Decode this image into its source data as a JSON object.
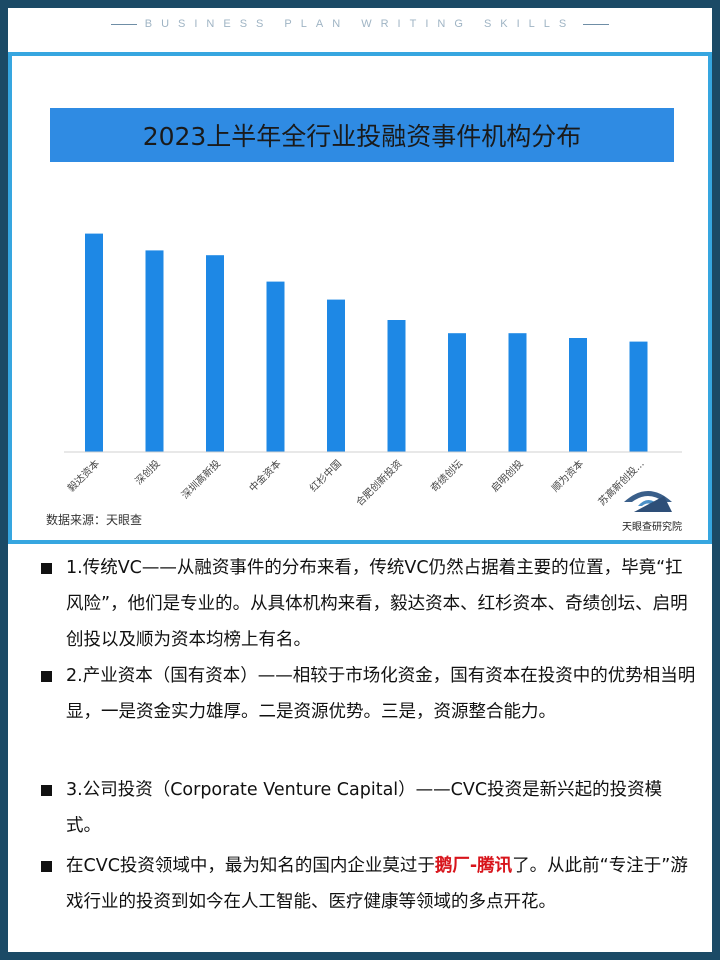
{
  "header": {
    "text": "BUSINESS PLAN WRITING SKILLS"
  },
  "chart_data": {
    "type": "bar",
    "title": "2023上半年全行业投融资事件机构分布",
    "categories": [
      "毅达资本",
      "深创投",
      "深圳高新投",
      "中金资本",
      "红杉中国",
      "合肥创新投资",
      "奇绩创坛",
      "启明创投",
      "顺为资本",
      "苏高新创投..."
    ],
    "values": [
      182,
      168,
      164,
      142,
      127,
      110,
      99,
      99,
      95,
      92
    ],
    "ylim": [
      0,
      200
    ],
    "grid": false,
    "legend": "none",
    "source": "数据来源：天眼查",
    "watermark": "天眼查研究院",
    "colors": {
      "bar": "#1e88e5",
      "title_bar": "#2f8be3",
      "title_text": "#1a1a1a"
    }
  },
  "bullets": [
    {
      "text": "1.传统VC——从融资事件的分布来看，传统VC仍然占据着主要的位置，毕竟“扛风险”，他们是专业的。从具体机构来看，毅达资本、红杉资本、奇绩创坛、启明创投以及顺为资本均榜上有名。"
    },
    {
      "text": "2.产业资本（国有资本）——相较于市场化资金，国有资本在投资中的优势相当明显，一是资金实力雄厚。二是资源优势。三是，资源整合能力。"
    },
    {
      "text": "3.公司投资（Corporate Venture Capital）——CVC投资是新兴起的投资模式。"
    },
    {
      "before": "在CVC投资领域中，最为知名的国内企业莫过于",
      "highlight": "鹅厂-腾讯",
      "after": "了。从此前“专注于”游戏行业的投资到如今在人工智能、医疗健康等领域的多点开花。"
    }
  ]
}
